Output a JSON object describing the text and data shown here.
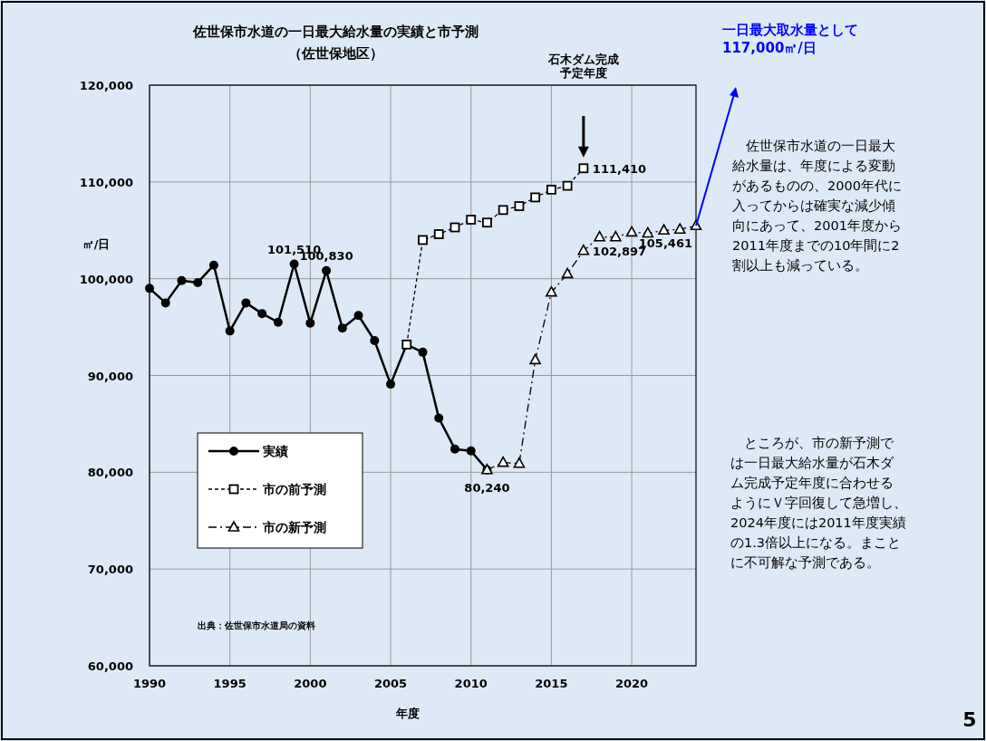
{
  "chart_data": {
    "type": "line",
    "title": "佐世保市水道の一日最大給水量の実績と市予測",
    "subtitle": "（佐世保地区）",
    "xlabel": "年度",
    "ylabel": "㎥/日",
    "xlim": [
      1990,
      2024
    ],
    "xticks": [
      1990,
      1995,
      2000,
      2005,
      2010,
      2015,
      2020
    ],
    "ylim": [
      60000,
      120000
    ],
    "yticks": [
      {
        "value": 60000,
        "label": "60,000"
      },
      {
        "value": 70000,
        "label": "70,000"
      },
      {
        "value": 80000,
        "label": "80,000"
      },
      {
        "value": 90000,
        "label": "90,000"
      },
      {
        "value": 100000,
        "label": "100,000"
      },
      {
        "value": 110000,
        "label": "110,000"
      },
      {
        "value": 120000,
        "label": "120,000"
      }
    ],
    "grid": true,
    "legend": "bottom left",
    "series": [
      {
        "name": "実績",
        "color": "#000000",
        "marker": "circle",
        "line_style": "solid",
        "x": [
          1990,
          1991,
          1992,
          1993,
          1994,
          1995,
          1996,
          1997,
          1998,
          1999,
          2000,
          2001,
          2002,
          2003,
          2004,
          2005,
          2006,
          2007,
          2008,
          2009,
          2010,
          2011
        ],
        "values": [
          99000,
          97500,
          99800,
          99600,
          101400,
          94600,
          97500,
          96400,
          95500,
          101510,
          95400,
          100830,
          94900,
          96200,
          93600,
          89100,
          93200,
          92400,
          85600,
          82400,
          82200,
          80240
        ],
        "value_labels": [
          null,
          null,
          null,
          null,
          null,
          null,
          null,
          null,
          null,
          "101,510",
          null,
          "100,830",
          null,
          null,
          null,
          null,
          null,
          null,
          null,
          null,
          null,
          "80,240"
        ]
      },
      {
        "name": "市の前予測",
        "color": "#000000",
        "marker": "square",
        "line_style": "dashed",
        "x": [
          2006,
          2007,
          2008,
          2009,
          2010,
          2011,
          2012,
          2013,
          2014,
          2015,
          2016,
          2017
        ],
        "values": [
          93200,
          104000,
          104600,
          105300,
          106100,
          105800,
          107100,
          107500,
          108400,
          109200,
          109600,
          111410
        ],
        "value_labels": [
          null,
          null,
          null,
          null,
          null,
          null,
          null,
          null,
          null,
          null,
          null,
          "111,410"
        ]
      },
      {
        "name": "市の新予測",
        "color": "#000000",
        "marker": "triangle",
        "line_style": "dotted",
        "x": [
          2011,
          2012,
          2013,
          2014,
          2015,
          2016,
          2017,
          2018,
          2019,
          2020,
          2021,
          2022,
          2023,
          2024
        ],
        "values": [
          80240,
          81000,
          80900,
          91600,
          98600,
          100500,
          102897,
          104300,
          104300,
          104800,
          104700,
          105000,
          105100,
          105461
        ],
        "value_labels": [
          null,
          null,
          null,
          null,
          null,
          null,
          "102,897",
          null,
          null,
          null,
          null,
          null,
          null,
          "105,461"
        ]
      }
    ],
    "annotations": [
      "石木ダム完成予定年度",
      "一日最大取水量として117,000㎥/日",
      "　佐世保市水道の一日最大給水量は、年度による変動があるものの、2000年代に入ってからは確実な減少傾向にあって、2001年度から2011年度までの10年間に2割以上も減っている。",
      "　ところが、市の新予測では一日最大給水量が石木ダム完成予定年度に合わせるようにＶ字回復して急増し、2024年度には2011年度実績の1.3倍以上になる。まことに不可解な予測である。",
      "出典：佐世保市水道局の資料",
      "5"
    ]
  }
}
